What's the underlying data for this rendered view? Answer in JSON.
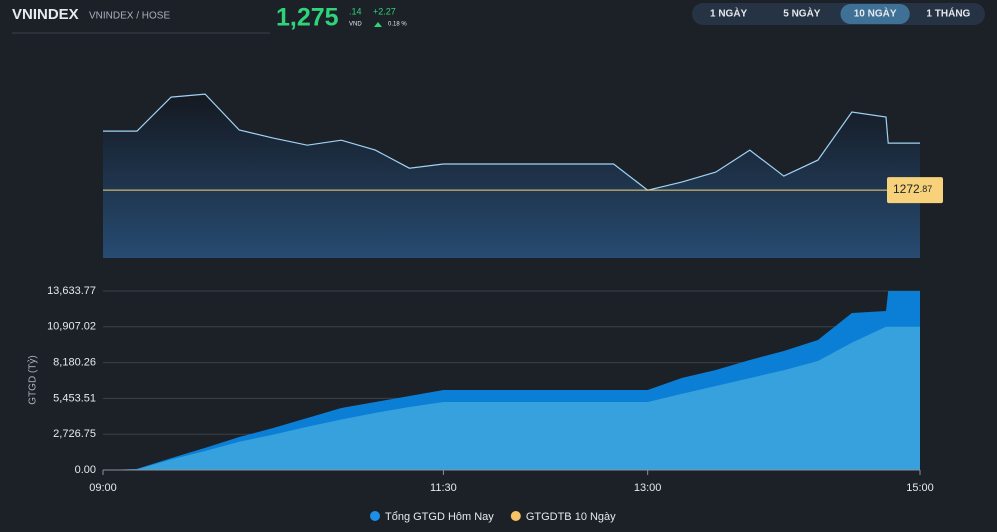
{
  "header": {
    "title": "VNINDEX",
    "subtitle": "VNINDEX / HOSE",
    "price": "1,275",
    "price_decimals": ".14",
    "unit": "VND",
    "change": "+2.27",
    "change_percent": "0.18 %"
  },
  "tabs": [
    {
      "label": "1 NGÀY"
    },
    {
      "label": "5 NGÀY"
    },
    {
      "label": "10 NGÀY",
      "active": true
    },
    {
      "label": "1 THÁNG"
    }
  ],
  "chart_data": [
    {
      "type": "line",
      "x": [
        "09:00",
        "09:15",
        "09:30",
        "09:45",
        "10:00",
        "10:15",
        "10:30",
        "10:45",
        "11:00",
        "11:15",
        "11:30",
        "11:45",
        "12:00",
        "12:15",
        "12:30",
        "12:45",
        "13:00",
        "13:15",
        "13:30",
        "13:45",
        "14:00",
        "14:15",
        "14:30",
        "14:45",
        "14:46",
        "15:00"
      ],
      "values": [
        1275.72,
        1275.72,
        1277.36,
        1277.5,
        1275.77,
        1275.38,
        1275.04,
        1275.28,
        1274.8,
        1273.93,
        1274.13,
        1274.13,
        1274.13,
        1274.13,
        1274.13,
        1274.13,
        1272.87,
        1273.26,
        1273.74,
        1274.8,
        1273.55,
        1274.32,
        1276.64,
        1276.4,
        1275.14,
        1275.14
      ],
      "color": "#9fd3f5",
      "xlim": [
        "09:00",
        "15:00"
      ],
      "ylim": [
        1269.6,
        1277.7
      ],
      "reference": {
        "value": 1272.87,
        "label": "1272",
        "label_decimals": ".87",
        "color": "#f7d27a"
      }
    },
    {
      "type": "area",
      "x": [
        "09:00",
        "09:15",
        "09:30",
        "09:45",
        "10:00",
        "10:15",
        "10:30",
        "10:45",
        "11:00",
        "11:15",
        "11:30",
        "11:45",
        "12:00",
        "12:15",
        "12:30",
        "12:45",
        "13:00",
        "13:15",
        "13:30",
        "13:45",
        "14:00",
        "14:15",
        "14:30",
        "14:45",
        "14:46",
        "15:00"
      ],
      "series": [
        {
          "name": "Tổng GTGD Hôm Nay",
          "color": "#1e8fe8",
          "fill": "#0b7fd6",
          "values": [
            0,
            80,
            910,
            1680,
            2510,
            3200,
            3960,
            4720,
            5180,
            5640,
            6090,
            6090,
            6090,
            6090,
            6090,
            6090,
            6090,
            7010,
            7620,
            8380,
            9060,
            9900,
            11960,
            12110,
            13633.77,
            13633.77
          ]
        },
        {
          "name": "GTGDTB 10 Ngày",
          "color": "#f7c266",
          "fill": "#36a1dc",
          "values": [
            0,
            60,
            800,
            1450,
            2150,
            2700,
            3300,
            3850,
            4350,
            4800,
            5180,
            5180,
            5180,
            5180,
            5180,
            5180,
            5180,
            5800,
            6400,
            7000,
            7600,
            8300,
            9700,
            10907.02,
            10907.02,
            10907.02
          ]
        }
      ],
      "y_label": "GTGD (Tỷ)",
      "xlim": [
        "09:00",
        "15:00"
      ],
      "xticks": [
        "09:00",
        "11:30",
        "13:00",
        "15:00"
      ],
      "ylim": [
        0,
        13633.77
      ],
      "yticks": [
        {
          "value": 0,
          "label": "0.00"
        },
        {
          "value": 2726.75,
          "label": "2,726.75"
        },
        {
          "value": 5453.51,
          "label": "5,453.51"
        },
        {
          "value": 8180.26,
          "label": "8,180.26"
        },
        {
          "value": 10907.02,
          "label": "10,907.02"
        },
        {
          "value": 13633.77,
          "label": "13,633.77"
        }
      ],
      "grid": true
    }
  ]
}
